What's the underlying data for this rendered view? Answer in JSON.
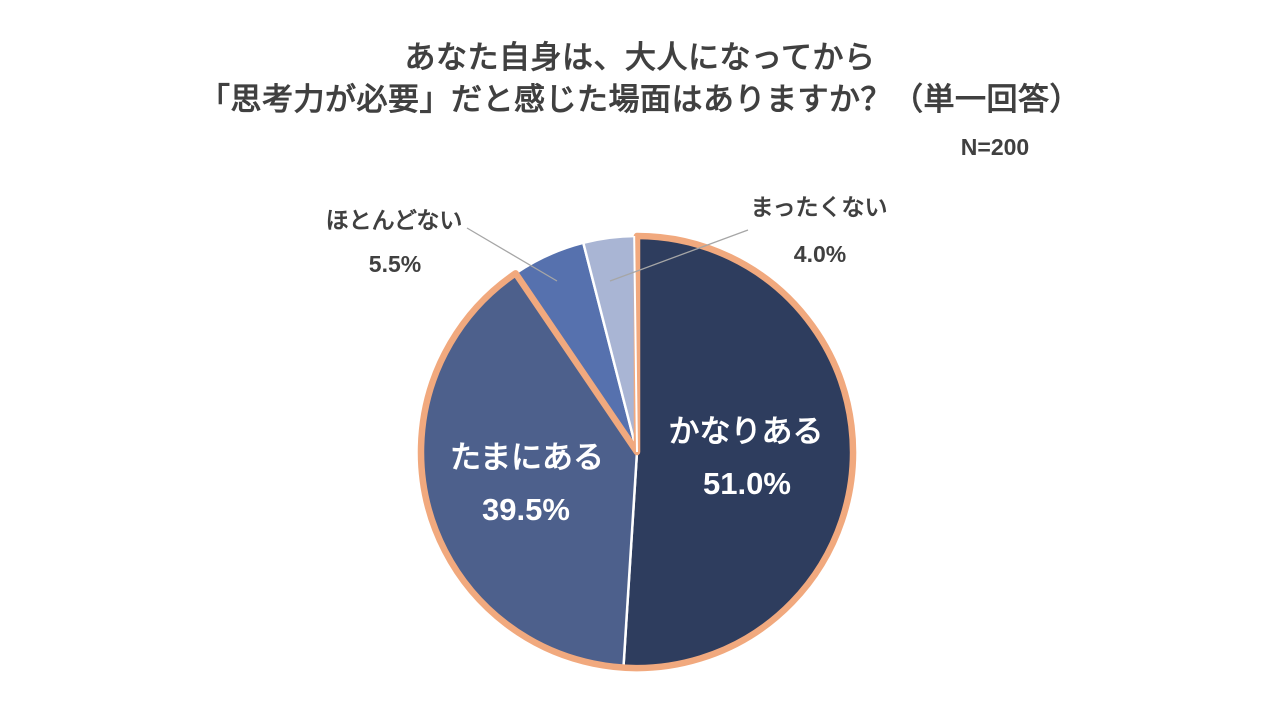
{
  "title": {
    "line1": "あなた自身は、大人になってから",
    "line2": "「思考力が必要」だと感じた場面はありますか？（単一回答）"
  },
  "sample_size_label": "N=200",
  "colors": {
    "title_text": "#404040",
    "highlight_border": "#F1A97E",
    "slice_separator": "#FFFFFF",
    "leader_line": "#A6A6A6",
    "inside_label_text": "#FFFFFF",
    "outside_label_text": "#404040"
  },
  "chart_data": {
    "type": "pie",
    "title": "あなた自身は、大人になってから「思考力が必要」だと感じた場面はありますか？（単一回答）",
    "sample_size": 200,
    "start_angle_deg": 0,
    "direction": "clockwise",
    "legend": "none",
    "segments": [
      {
        "label": "かなりある",
        "value_pct": 51.0,
        "pct_display": "51.0%",
        "color": "#2E3D5E",
        "label_placement": "inside",
        "highlight_border": true
      },
      {
        "label": "たまにある",
        "value_pct": 39.5,
        "pct_display": "39.5%",
        "color": "#4D608C",
        "label_placement": "inside",
        "highlight_border": true
      },
      {
        "label": "ほとんどない",
        "value_pct": 5.5,
        "pct_display": "5.5%",
        "color": "#5671AE",
        "label_placement": "outside",
        "highlight_border": false
      },
      {
        "label": "まったくない",
        "value_pct": 4.0,
        "pct_display": "4.0%",
        "color": "#A9B5D4",
        "label_placement": "outside",
        "highlight_border": false
      }
    ]
  }
}
